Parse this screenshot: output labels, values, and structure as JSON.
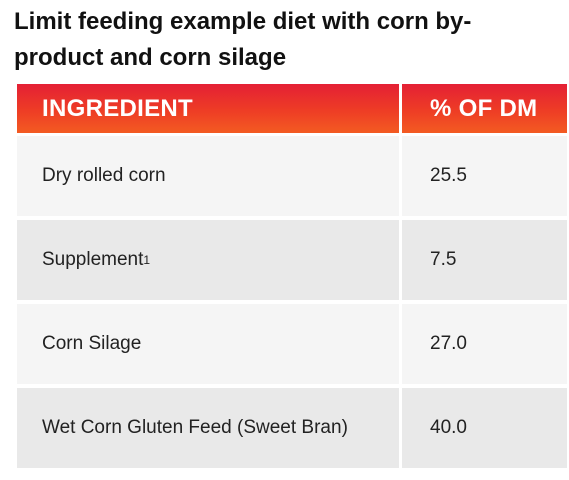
{
  "title": "Limit feeding example diet with corn by-product and corn silage",
  "table": {
    "headers": [
      "INGREDIENT",
      "% OF DM"
    ],
    "rows": [
      {
        "ingredient": "Dry rolled corn",
        "superscript": "",
        "percent_dm": "25.5"
      },
      {
        "ingredient": "Supplement",
        "superscript": "1",
        "percent_dm": "7.5"
      },
      {
        "ingredient": "Corn Silage",
        "superscript": "",
        "percent_dm": "27.0"
      },
      {
        "ingredient": "Wet Corn Gluten Feed (Sweet Bran)",
        "superscript": "",
        "percent_dm": "40.0"
      }
    ]
  },
  "colors": {
    "header_gradient_top": "#e42035",
    "header_gradient_bottom": "#f35b22",
    "row_light": "#f5f5f5",
    "row_dark": "#e9e9e9"
  }
}
